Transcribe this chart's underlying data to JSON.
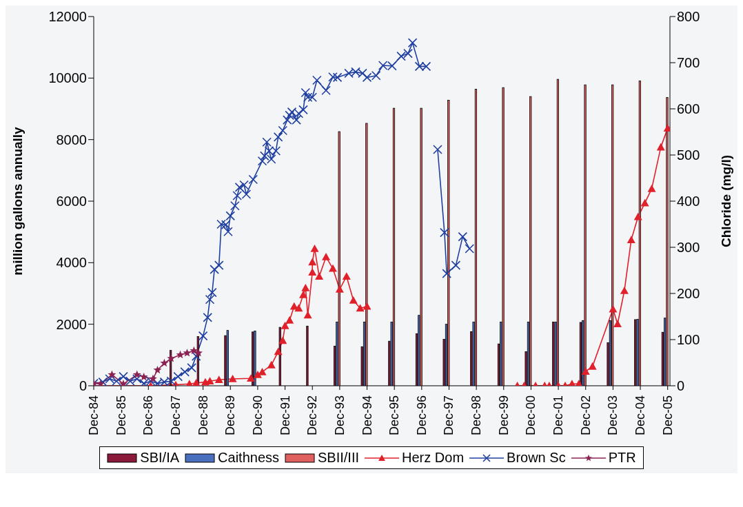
{
  "chart_data": {
    "type": "bar",
    "ylabel": "million gallons annually",
    "y2label": "Chloride (mg/l)",
    "xlim": [
      "1984-12",
      "2006-01"
    ],
    "xticks": [
      {
        "value": "1984-12",
        "label": "Dec-84"
      },
      {
        "value": "1985-12",
        "label": "Dec-85"
      },
      {
        "value": "1986-12",
        "label": "Dec-86"
      },
      {
        "value": "1987-12",
        "label": "Dec-87"
      },
      {
        "value": "1988-12",
        "label": "Dec-88"
      },
      {
        "value": "1989-12",
        "label": "Dec-89"
      },
      {
        "value": "1990-12",
        "label": "Dec-90"
      },
      {
        "value": "1991-12",
        "label": "Dec-91"
      },
      {
        "value": "1992-12",
        "label": "Dec-92"
      },
      {
        "value": "1993-12",
        "label": "Dec-93"
      },
      {
        "value": "1994-12",
        "label": "Dec-94"
      },
      {
        "value": "1995-12",
        "label": "Dec-95"
      },
      {
        "value": "1996-12",
        "label": "Dec-96"
      },
      {
        "value": "1997-12",
        "label": "Dec-97"
      },
      {
        "value": "1998-12",
        "label": "Dec-98"
      },
      {
        "value": "1999-12",
        "label": "Dec-99"
      },
      {
        "value": "2000-12",
        "label": "Dec-00"
      },
      {
        "value": "2001-12",
        "label": "Dec-01"
      },
      {
        "value": "2002-12",
        "label": "Dec-02"
      },
      {
        "value": "2003-12",
        "label": "Dec-03"
      },
      {
        "value": "2004-12",
        "label": "Dec-04"
      },
      {
        "value": "2005-12",
        "label": "Dec-05"
      }
    ],
    "ylim": [
      0,
      12000
    ],
    "yticks": [
      0,
      2000,
      4000,
      6000,
      8000,
      10000,
      12000
    ],
    "y2lim": [
      0,
      800
    ],
    "y2ticks": [
      0,
      100,
      200,
      300,
      400,
      500,
      600,
      700,
      800
    ],
    "legend": "bottom",
    "series": [
      {
        "name": "SBI/IA",
        "color": "#8b1a3a",
        "x": [
          "1987-09-25",
          "1988-09-25",
          "1989-09-25",
          "1990-09-25",
          "1991-09-25",
          "1992-09-25",
          "1993-09-25",
          "1994-09-25",
          "1995-09-25",
          "1996-09-25",
          "1997-09-25",
          "1998-09-25",
          "1999-09-25",
          "2000-09-25",
          "2001-09-25",
          "2002-09-25",
          "2003-09-25",
          "2004-09-25",
          "2005-09-25"
        ],
        "values": [
          1150,
          1600,
          1630,
          1750,
          1900,
          1940,
          1290,
          1270,
          1450,
          1690,
          1510,
          1760,
          1360,
          1110,
          2070,
          2060,
          1400,
          2150,
          1740
        ]
      },
      {
        "name": "Caithness",
        "color": "#4a6fbf",
        "x": [
          "1989-10-25",
          "1990-10-25",
          "1993-10-25",
          "1994-10-25",
          "1995-10-25",
          "1996-10-25",
          "1997-10-25",
          "1998-10-25",
          "1999-10-25",
          "2000-10-25",
          "2001-10-25",
          "2002-10-25",
          "2003-10-25",
          "2004-10-25",
          "2005-10-25"
        ],
        "values": [
          1800,
          1780,
          2070,
          2070,
          2070,
          2290,
          2000,
          2070,
          2070,
          2070,
          2070,
          2120,
          2120,
          2160,
          2200
        ]
      },
      {
        "name": "SBII/III",
        "color": "#e06060",
        "x": [
          "1993-11-25",
          "1994-11-25",
          "1995-11-25",
          "1996-11-25",
          "1997-11-25",
          "1998-11-25",
          "1999-11-25",
          "2000-11-25",
          "2001-11-25",
          "2002-11-25",
          "2003-11-25",
          "2004-11-25",
          "2005-11-25"
        ],
        "values": [
          8260,
          8530,
          9020,
          9020,
          9280,
          9640,
          9690,
          9400,
          9960,
          9780,
          9780,
          9910,
          9370
        ]
      },
      {
        "name": "Herz Dom",
        "type": "line",
        "axis": "y2",
        "marker": "triangle",
        "color": "#e0202a",
        "x": [
          "1984-12",
          "1986-01",
          "1987-01",
          "1987-12",
          "1988-06",
          "1988-09",
          "1989-01",
          "1989-03",
          "1989-07",
          "1990-01",
          "1990-09",
          "1990-12",
          "1991-02",
          "1991-06",
          "1991-09",
          "1991-11",
          "1991-12",
          "1992-02",
          "1992-04",
          "1992-06",
          "1992-08",
          "1992-09",
          "1992-10",
          "1992-12",
          "1992-12",
          "1993-01",
          "1993-03",
          "1993-06",
          "1993-09",
          "1993-12",
          "1994-03",
          "1994-06",
          "1994-09",
          "1994-12",
          "1997-01",
          "2000-06",
          "2000-09",
          "2001-02",
          "2001-06",
          "2001-08",
          "2001-12",
          "2002-03",
          "2002-06",
          "2002-09",
          "2002-12",
          "2003-03",
          "2003-12",
          "2004-02",
          "2004-05",
          "2004-08",
          "2004-11",
          "2005-02",
          "2005-05",
          "2005-09",
          "2005-12"
        ],
        "values": [
          0,
          0,
          0,
          2,
          4,
          6,
          8,
          10,
          13,
          15,
          16,
          24,
          30,
          45,
          74,
          98,
          130,
          142,
          172,
          168,
          197,
          212,
          153,
          246,
          268,
          297,
          237,
          279,
          254,
          209,
          237,
          185,
          168,
          172,
          null,
          0,
          0,
          0,
          0,
          0,
          0,
          0,
          4,
          4,
          31,
          42,
          166,
          134,
          206,
          316,
          366,
          396,
          427,
          517,
          558
        ]
      },
      {
        "name": "Brown Sc",
        "type": "line",
        "axis": "y2",
        "marker": "cross",
        "color": "#1f3fa0",
        "x": [
          "1984-12",
          "1985-04",
          "1985-07",
          "1985-10",
          "1986-01",
          "1986-04",
          "1986-07",
          "1986-10",
          "1987-01",
          "1987-04",
          "1987-07",
          "1987-10",
          "1988-01",
          "1988-04",
          "1988-07",
          "1988-09",
          "1988-12",
          "1989-02",
          "1989-03",
          "1989-04",
          "1989-05",
          "1989-07",
          "1989-08",
          "1989-10",
          "1989-11",
          "1989-12",
          "1990-02",
          "1990-03",
          "1990-04",
          "1990-06",
          "1990-07",
          "1990-10",
          "1991-02",
          "1991-03",
          "1991-04",
          "1991-05",
          "1991-06",
          "1991-08",
          "1991-09",
          "1991-11",
          "1992-01",
          "1992-02",
          "1992-03",
          "1992-05",
          "1992-06",
          "1992-08",
          "1992-09",
          "1992-10",
          "1992-12",
          "1993-02",
          "1993-06",
          "1993-09",
          "1993-11",
          "1994-04",
          "1994-07",
          "1994-10",
          "1994-12",
          "1995-04",
          "1995-07",
          "1995-11",
          "1996-03",
          "1996-06",
          "1996-08",
          "1996-11",
          "1997-02",
          "1997-05",
          "1997-07",
          "1997-10",
          "1997-11",
          "1998-03",
          "1998-06",
          "1998-09"
        ],
        "values": [
          5,
          8,
          15,
          10,
          20,
          10,
          15,
          5,
          10,
          5,
          8,
          10,
          20,
          30,
          39,
          64,
          108,
          148,
          187,
          202,
          252,
          261,
          350,
          349,
          334,
          368,
          390,
          412,
          430,
          435,
          415,
          447,
          487,
          498,
          528,
          509,
          491,
          509,
          539,
          553,
          576,
          586,
          593,
          576,
          590,
          598,
          635,
          625,
          625,
          662,
          640,
          669,
          668,
          677,
          680,
          677,
          668,
          672,
          694,
          693,
          714,
          720,
          743,
          692,
          692,
          null,
          512,
          332,
          243,
          261,
          323,
          297
        ]
      },
      {
        "name": "PTR",
        "type": "line",
        "axis": "y2",
        "marker": "star",
        "color": "#8b2252",
        "x": [
          "1984-12",
          "1985-03",
          "1985-08",
          "1986-01",
          "1986-07",
          "1986-10",
          "1987-02",
          "1987-04",
          "1987-07",
          "1987-10",
          "1988-02",
          "1988-05",
          "1988-08",
          "1988-10"
        ],
        "values": [
          5,
          4,
          24,
          4,
          24,
          19,
          15,
          34,
          49,
          59,
          67,
          71,
          76,
          71
        ]
      }
    ]
  }
}
